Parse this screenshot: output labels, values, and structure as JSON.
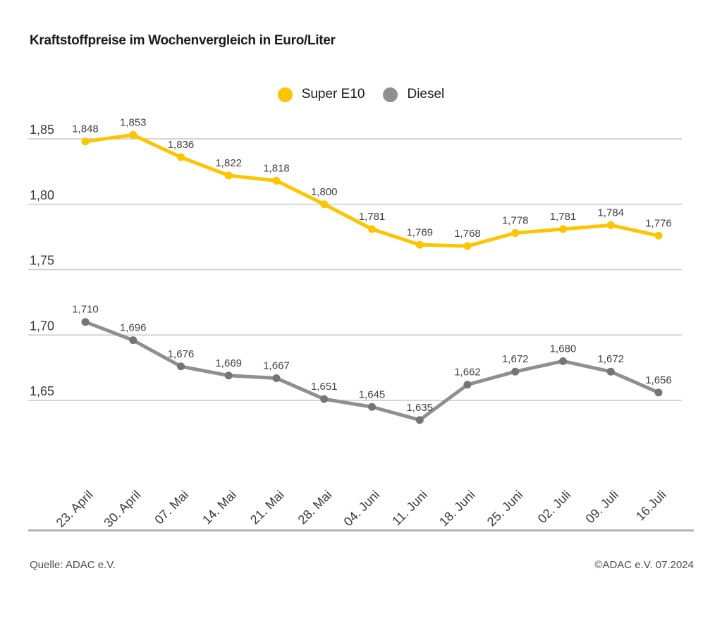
{
  "title": "Kraftstoffpreise im Wochenvergleich in Euro/Liter",
  "legend": {
    "items": [
      {
        "label": "Super E10",
        "color": "#FCC500"
      },
      {
        "label": "Diesel",
        "color": "#8F8F8F"
      }
    ]
  },
  "footer": {
    "source": "Quelle: ADAC e.V.",
    "copyright": "©ADAC e.V. 07.2024"
  },
  "colors": {
    "super_e10": "#FCC500",
    "diesel_line": "#8F8F8F",
    "diesel_point": "#757575",
    "grid": "#C8C8C8",
    "axis_text": "#3A3A3A",
    "value_label_text": "#3F3F3F",
    "divider": "#B2B2B2"
  },
  "chart_data": {
    "type": "line",
    "title": "Kraftstoffpreise im Wochenvergleich in Euro/Liter",
    "unit": "Euro/Liter",
    "categories": [
      "23. April",
      "30. April",
      "07. Mai",
      "14. Mai",
      "21. Mai",
      "28. Mai",
      "04. Juni",
      "11. Juni",
      "18. Juni",
      "25. Juni",
      "02. Juli",
      "09. Juli",
      "16.Juli"
    ],
    "series": [
      {
        "name": "Super E10",
        "color": "#FCC500",
        "point_color": "#FCC500",
        "values": [
          1.848,
          1.853,
          1.836,
          1.822,
          1.818,
          1.8,
          1.781,
          1.769,
          1.768,
          1.778,
          1.781,
          1.784,
          1.776
        ]
      },
      {
        "name": "Diesel",
        "color": "#8F8F8F",
        "point_color": "#757575",
        "values": [
          1.71,
          1.696,
          1.676,
          1.669,
          1.667,
          1.651,
          1.645,
          1.635,
          1.662,
          1.672,
          1.68,
          1.672,
          1.656
        ]
      }
    ],
    "y_ticks": [
      {
        "value": 1.85,
        "label": "1,85"
      },
      {
        "value": 1.8,
        "label": "1,80"
      },
      {
        "value": 1.75,
        "label": "1,75"
      },
      {
        "value": 1.7,
        "label": "1,70"
      },
      {
        "value": 1.65,
        "label": "1,65"
      }
    ],
    "ylim": [
      1.6,
      1.87
    ],
    "xlabel": "",
    "ylabel": "Euro/Liter",
    "grid": "horizontal",
    "legend_position": "top-center",
    "decimal_format": "comma",
    "point_labels": true
  }
}
